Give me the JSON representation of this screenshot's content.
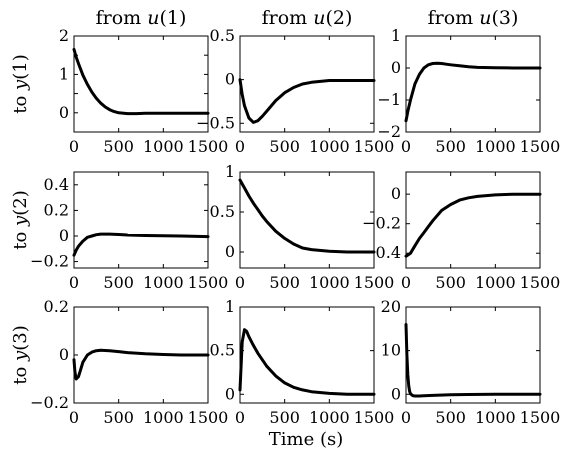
{
  "figure": {
    "xlabel": "Time (s)",
    "col_titles": [
      {
        "prefix": "from ",
        "var": "u",
        "idx": "(1)"
      },
      {
        "prefix": "from ",
        "var": "u",
        "idx": "(2)"
      },
      {
        "prefix": "from ",
        "var": "u",
        "idx": "(3)"
      }
    ],
    "row_labels": [
      {
        "prefix": "to ",
        "var": "y",
        "idx": "(1)"
      },
      {
        "prefix": "to ",
        "var": "y",
        "idx": "(2)"
      },
      {
        "prefix": "to ",
        "var": "y",
        "idx": "(3)"
      }
    ],
    "line_color": "#000000"
  },
  "chart_data": [
    {
      "type": "line",
      "row": 1,
      "col": 1,
      "xlim": [
        0,
        1500
      ],
      "ylim": [
        -0.5,
        2
      ],
      "xticks": [
        0,
        500,
        1000,
        1500
      ],
      "yticks": [
        -0.5,
        0,
        0.5,
        1,
        1.5,
        2
      ],
      "ytick_labels": [
        "",
        "0",
        "",
        "1",
        "",
        "2"
      ],
      "x": [
        0,
        25,
        50,
        100,
        150,
        200,
        250,
        300,
        350,
        400,
        450,
        500,
        600,
        700,
        800,
        1000,
        1200,
        1500
      ],
      "y": [
        1.65,
        1.45,
        1.28,
        0.98,
        0.74,
        0.54,
        0.38,
        0.25,
        0.15,
        0.08,
        0.03,
        0.0,
        -0.02,
        -0.02,
        -0.01,
        -0.01,
        -0.01,
        -0.01
      ]
    },
    {
      "type": "line",
      "row": 1,
      "col": 2,
      "xlim": [
        0,
        1500
      ],
      "ylim": [
        -0.6,
        0.5
      ],
      "xticks": [
        0,
        500,
        1000,
        1500
      ],
      "yticks": [
        -0.5,
        0,
        0.5
      ],
      "ytick_labels": [
        "-0.5",
        "0",
        "0.5"
      ],
      "x": [
        0,
        25,
        50,
        100,
        150,
        200,
        250,
        300,
        400,
        500,
        600,
        700,
        800,
        900,
        1000,
        1200,
        1500
      ],
      "y": [
        0.0,
        -0.17,
        -0.3,
        -0.44,
        -0.49,
        -0.47,
        -0.42,
        -0.36,
        -0.24,
        -0.15,
        -0.09,
        -0.05,
        -0.03,
        -0.02,
        -0.01,
        -0.01,
        -0.01
      ]
    },
    {
      "type": "line",
      "row": 1,
      "col": 3,
      "xlim": [
        0,
        1500
      ],
      "ylim": [
        -2,
        1
      ],
      "xticks": [
        0,
        500,
        1000,
        1500
      ],
      "yticks": [
        -2,
        -1,
        0,
        1
      ],
      "ytick_labels": [
        "-2",
        "-1",
        "0",
        "1"
      ],
      "x": [
        0,
        25,
        50,
        100,
        150,
        200,
        250,
        300,
        350,
        400,
        450,
        500,
        600,
        700,
        800,
        1000,
        1200,
        1500
      ],
      "y": [
        -1.65,
        -1.3,
        -1.0,
        -0.5,
        -0.2,
        0.0,
        0.1,
        0.14,
        0.15,
        0.14,
        0.12,
        0.1,
        0.07,
        0.04,
        0.02,
        0.01,
        0.0,
        0.0
      ]
    },
    {
      "type": "line",
      "row": 2,
      "col": 1,
      "xlim": [
        0,
        1500
      ],
      "ylim": [
        -0.25,
        0.5
      ],
      "xticks": [
        0,
        500,
        1000,
        1500
      ],
      "yticks": [
        -0.2,
        0,
        0.2,
        0.4
      ],
      "ytick_labels": [
        "-0.2",
        "0",
        "0.2",
        "0.4"
      ],
      "x": [
        0,
        25,
        50,
        100,
        150,
        200,
        250,
        300,
        350,
        400,
        500,
        600,
        800,
        1000,
        1200,
        1500
      ],
      "y": [
        -0.15,
        -0.11,
        -0.08,
        -0.04,
        -0.01,
        0.0,
        0.01,
        0.015,
        0.015,
        0.015,
        0.012,
        0.008,
        0.004,
        0.002,
        0.0,
        -0.005
      ]
    },
    {
      "type": "line",
      "row": 2,
      "col": 2,
      "xlim": [
        0,
        1500
      ],
      "ylim": [
        -0.2,
        1
      ],
      "xticks": [
        0,
        500,
        1000,
        1500
      ],
      "yticks": [
        0,
        0.5,
        1
      ],
      "ytick_labels": [
        "0",
        "0.5",
        "1"
      ],
      "x": [
        0,
        50,
        100,
        150,
        200,
        250,
        300,
        400,
        500,
        600,
        700,
        800,
        1000,
        1200,
        1500
      ],
      "y": [
        0.9,
        0.8,
        0.7,
        0.61,
        0.53,
        0.45,
        0.38,
        0.26,
        0.17,
        0.1,
        0.05,
        0.03,
        0.01,
        0.0,
        0.0
      ]
    },
    {
      "type": "line",
      "row": 2,
      "col": 3,
      "xlim": [
        0,
        1500
      ],
      "ylim": [
        -0.5,
        0.15
      ],
      "xticks": [
        0,
        500,
        1000,
        1500
      ],
      "yticks": [
        -0.4,
        -0.2,
        0
      ],
      "ytick_labels": [
        "-0.4",
        "-0.2",
        "0"
      ],
      "x": [
        0,
        50,
        100,
        150,
        200,
        250,
        300,
        400,
        500,
        600,
        700,
        800,
        1000,
        1200,
        1500
      ],
      "y": [
        -0.42,
        -0.4,
        -0.35,
        -0.3,
        -0.26,
        -0.22,
        -0.18,
        -0.11,
        -0.07,
        -0.04,
        -0.025,
        -0.015,
        -0.005,
        0.0,
        0.0
      ]
    },
    {
      "type": "line",
      "row": 3,
      "col": 1,
      "xlim": [
        0,
        1500
      ],
      "ylim": [
        -0.2,
        0.2
      ],
      "xticks": [
        0,
        500,
        1000,
        1500
      ],
      "yticks": [
        -0.2,
        0,
        0.2
      ],
      "ytick_labels": [
        "-0.2",
        "0",
        "0.2"
      ],
      "x": [
        0,
        10,
        25,
        50,
        75,
        100,
        150,
        200,
        250,
        300,
        400,
        500,
        600,
        800,
        1000,
        1200,
        1500
      ],
      "y": [
        -0.02,
        -0.07,
        -0.1,
        -0.09,
        -0.06,
        -0.03,
        0.0,
        0.012,
        0.018,
        0.02,
        0.018,
        0.014,
        0.01,
        0.005,
        0.002,
        0.0,
        0.0
      ]
    },
    {
      "type": "line",
      "row": 3,
      "col": 2,
      "xlim": [
        0,
        1500
      ],
      "ylim": [
        -0.1,
        1
      ],
      "xticks": [
        0,
        500,
        1000,
        1500
      ],
      "yticks": [
        0,
        0.5,
        1
      ],
      "ytick_labels": [
        "0",
        "0.5",
        "1"
      ],
      "x": [
        0,
        25,
        50,
        75,
        100,
        150,
        200,
        300,
        400,
        500,
        600,
        700,
        800,
        1000,
        1200,
        1500
      ],
      "y": [
        0.05,
        0.6,
        0.74,
        0.72,
        0.66,
        0.56,
        0.47,
        0.32,
        0.21,
        0.13,
        0.08,
        0.05,
        0.03,
        0.01,
        0.0,
        0.0
      ]
    },
    {
      "type": "line",
      "row": 3,
      "col": 3,
      "xlim": [
        0,
        1500
      ],
      "ylim": [
        -2,
        20
      ],
      "xticks": [
        0,
        500,
        1000,
        1500
      ],
      "yticks": [
        0,
        10,
        20
      ],
      "ytick_labels": [
        "0",
        "10",
        "20"
      ],
      "x": [
        0,
        10,
        20,
        30,
        40,
        50,
        75,
        100,
        150,
        200,
        300,
        500,
        700,
        1000,
        1500
      ],
      "y": [
        16.0,
        9.0,
        4.5,
        2.0,
        0.7,
        0.1,
        -0.3,
        -0.4,
        -0.4,
        -0.35,
        -0.25,
        -0.12,
        -0.05,
        -0.01,
        0.0
      ]
    }
  ]
}
